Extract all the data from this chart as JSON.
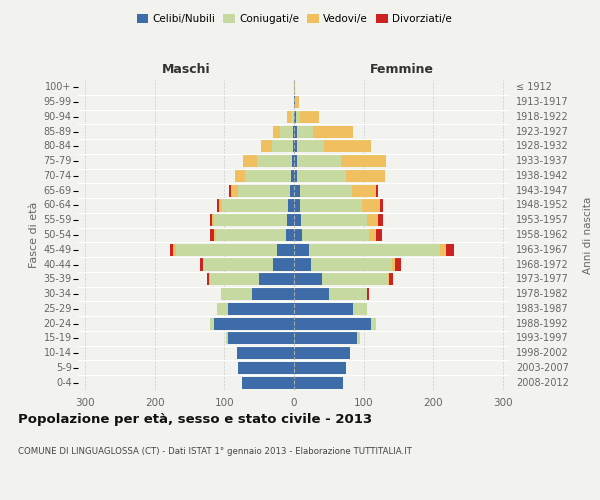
{
  "age_groups": [
    "0-4",
    "5-9",
    "10-14",
    "15-19",
    "20-24",
    "25-29",
    "30-34",
    "35-39",
    "40-44",
    "45-49",
    "50-54",
    "55-59",
    "60-64",
    "65-69",
    "70-74",
    "75-79",
    "80-84",
    "85-89",
    "90-94",
    "95-99",
    "100+"
  ],
  "birth_years": [
    "2008-2012",
    "2003-2007",
    "1998-2002",
    "1993-1997",
    "1988-1992",
    "1983-1987",
    "1978-1982",
    "1973-1977",
    "1968-1972",
    "1963-1967",
    "1958-1962",
    "1953-1957",
    "1948-1952",
    "1943-1947",
    "1938-1942",
    "1933-1937",
    "1928-1932",
    "1923-1927",
    "1918-1922",
    "1913-1917",
    "≤ 1912"
  ],
  "colors": {
    "celibi": "#3d6ca8",
    "coniugati": "#c5d9a0",
    "vedovi": "#f0c060",
    "divorziati": "#cc2222"
  },
  "males": {
    "celibi": [
      75,
      80,
      82,
      95,
      115,
      95,
      60,
      50,
      30,
      25,
      12,
      10,
      8,
      6,
      5,
      3,
      2,
      2,
      0,
      0,
      0
    ],
    "coniugati": [
      0,
      0,
      0,
      3,
      5,
      15,
      45,
      70,
      100,
      145,
      100,
      105,
      95,
      75,
      65,
      50,
      30,
      18,
      5,
      0,
      0
    ],
    "vedovi": [
      0,
      0,
      0,
      0,
      0,
      0,
      0,
      2,
      0,
      3,
      3,
      3,
      5,
      10,
      15,
      20,
      15,
      10,
      5,
      0,
      0
    ],
    "divorziati": [
      0,
      0,
      0,
      0,
      0,
      0,
      0,
      3,
      5,
      5,
      5,
      3,
      3,
      3,
      0,
      0,
      0,
      0,
      0,
      0,
      0
    ]
  },
  "females": {
    "nubili": [
      70,
      75,
      80,
      90,
      110,
      85,
      50,
      40,
      25,
      22,
      12,
      10,
      8,
      8,
      5,
      5,
      5,
      5,
      3,
      2,
      0
    ],
    "coniugati": [
      0,
      0,
      0,
      5,
      8,
      20,
      55,
      95,
      115,
      188,
      95,
      95,
      90,
      75,
      70,
      62,
      38,
      22,
      5,
      0,
      0
    ],
    "vedovi": [
      0,
      0,
      0,
      0,
      0,
      0,
      0,
      2,
      5,
      8,
      10,
      15,
      25,
      35,
      55,
      65,
      68,
      58,
      28,
      5,
      2
    ],
    "divorziati": [
      0,
      0,
      0,
      0,
      0,
      0,
      3,
      5,
      8,
      12,
      10,
      8,
      5,
      3,
      0,
      0,
      0,
      0,
      0,
      0,
      0
    ]
  },
  "xlim": 310,
  "title": "Popolazione per età, sesso e stato civile - 2013",
  "subtitle": "COMUNE DI LINGUAGLOSSA (CT) - Dati ISTAT 1° gennaio 2013 - Elaborazione TUTTITALIA.IT",
  "xlabel_left": "Maschi",
  "xlabel_right": "Femmine",
  "ylabel": "Fasce di età",
  "ylabel_right": "Anni di nascita",
  "legend_labels": [
    "Celibi/Nubili",
    "Coniugati/e",
    "Vedovi/e",
    "Divorziati/e"
  ],
  "bg_color": "#f2f2ee",
  "grid_color": "#cccccc"
}
